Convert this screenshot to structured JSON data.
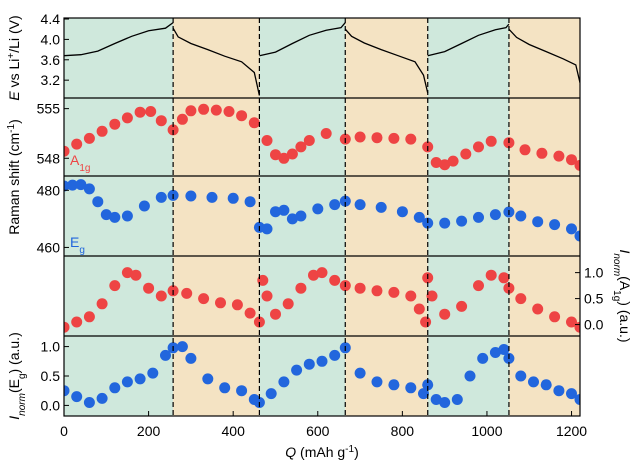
{
  "chart_data": {
    "type": "scatter",
    "x_label": {
      "var": "Q",
      "unit": "(mAh g",
      "sup": "-1",
      "close": ")"
    },
    "xlim": [
      0,
      1220
    ],
    "x_ticks": [
      0,
      200,
      400,
      600,
      800,
      1000,
      1200
    ],
    "cycle_boundaries": [
      258,
      462,
      665,
      860,
      1052
    ],
    "region_colors": {
      "charge": "#cfe8dc",
      "discharge": "#f4e3c3"
    },
    "regions": [
      {
        "from": 0,
        "to": 258,
        "type": "charge"
      },
      {
        "from": 258,
        "to": 462,
        "type": "discharge"
      },
      {
        "from": 462,
        "to": 665,
        "type": "charge"
      },
      {
        "from": 665,
        "to": 860,
        "type": "discharge"
      },
      {
        "from": 860,
        "to": 1052,
        "type": "charge"
      },
      {
        "from": 1052,
        "to": 1220,
        "type": "discharge"
      }
    ],
    "panels": [
      {
        "id": "voltage",
        "y_label": {
          "var": "E",
          "text": " vs Li",
          "sup": "+",
          "rest": "/Li (V)"
        },
        "ylim": [
          2.85,
          4.42
        ],
        "y_ticks": [
          3.2,
          3.6,
          4.0,
          4.4
        ],
        "y_ticks_side": "left",
        "line_color": "#000000",
        "series": [
          {
            "x": [
              0,
              40,
              80,
              120,
              160,
              200,
              240,
              258
            ],
            "y": [
              3.68,
              3.7,
              3.77,
              3.92,
              4.06,
              4.17,
              4.22,
              4.33
            ]
          },
          {
            "x": [
              258,
              270,
              300,
              340,
              380,
              420,
              450,
              462
            ],
            "y": [
              4.22,
              4.05,
              3.92,
              3.8,
              3.67,
              3.56,
              3.35,
              2.9
            ]
          },
          {
            "x": [
              462,
              500,
              540,
              580,
              620,
              655,
              665
            ],
            "y": [
              3.68,
              3.75,
              3.92,
              4.08,
              4.18,
              4.23,
              4.33
            ]
          },
          {
            "x": [
              665,
              680,
              710,
              750,
              790,
              830,
              850,
              860
            ],
            "y": [
              4.2,
              4.06,
              3.93,
              3.8,
              3.68,
              3.56,
              3.3,
              2.95
            ]
          },
          {
            "x": [
              860,
              900,
              940,
              980,
              1020,
              1045,
              1052
            ],
            "y": [
              3.68,
              3.76,
              3.92,
              4.08,
              4.19,
              4.23,
              4.3
            ]
          },
          {
            "x": [
              1052,
              1070,
              1100,
              1140,
              1180,
              1210,
              1220
            ],
            "y": [
              4.2,
              4.04,
              3.9,
              3.76,
              3.62,
              3.5,
              3.15
            ]
          }
        ]
      },
      {
        "id": "a1g",
        "series_label": {
          "base": "A",
          "sub": "1g"
        },
        "ylim": [
          545.5,
          556.5
        ],
        "y_ticks": [
          548,
          555
        ],
        "y_ticks_side": "left",
        "color": "#ee4444",
        "series": [
          {
            "x": [
              0,
              30,
              60,
              90,
              120,
              150,
              180,
              205,
              230,
              258,
              280,
              300,
              330,
              360,
              390,
              420,
              450,
              480,
              500,
              520,
              540,
              560,
              580,
              620,
              665,
              700,
              740,
              780,
              820,
              860,
              880,
              900,
              920,
              950,
              980,
              1010,
              1052,
              1090,
              1130,
              1170,
              1200,
              1220
            ],
            "y": [
              549.0,
              550.0,
              550.8,
              551.8,
              552.8,
              553.7,
              554.5,
              554.6,
              553.3,
              552.0,
              553.5,
              554.7,
              554.9,
              554.8,
              554.6,
              554.0,
              553.0,
              550.5,
              548.5,
              548.0,
              548.6,
              549.6,
              550.5,
              551.5,
              550.7,
              551.0,
              550.9,
              550.8,
              550.7,
              549.6,
              547.4,
              547.1,
              547.6,
              548.6,
              549.6,
              550.4,
              550.2,
              549.2,
              548.7,
              548.3,
              547.8,
              547.0
            ]
          }
        ]
      },
      {
        "id": "eg",
        "series_label": {
          "base": "E",
          "sub": "g"
        },
        "ylim": [
          457,
          485
        ],
        "y_ticks": [
          460,
          480
        ],
        "y_ticks_side": "left",
        "color": "#2266dd",
        "series": [
          {
            "x": [
              0,
              20,
              40,
              60,
              80,
              100,
              120,
              150,
              190,
              230,
              258,
              300,
              350,
              400,
              440,
              462,
              480,
              500,
              520,
              540,
              560,
              600,
              640,
              665,
              700,
              750,
              800,
              840,
              860,
              900,
              940,
              980,
              1020,
              1052,
              1080,
              1120,
              1160,
              1200,
              1220
            ],
            "y": [
              481.5,
              481.8,
              482.0,
              480.5,
              476.0,
              471.5,
              470.5,
              471.0,
              474.5,
              477.5,
              478.2,
              478.0,
              477.5,
              477.2,
              476.0,
              467.0,
              466.5,
              472.5,
              473.0,
              470.0,
              471.0,
              473.5,
              475.0,
              476.2,
              475.0,
              474.0,
              472.5,
              470.5,
              468.5,
              468.5,
              469.2,
              470.5,
              471.5,
              472.4,
              471.0,
              469.0,
              468.0,
              466.5,
              464.0
            ]
          }
        ]
      },
      {
        "id": "inorm_a1g",
        "y_label": {
          "base": "I",
          "sub": "norm",
          "mid": "(A",
          "sub2": "1g",
          "end": ") (a.u.)"
        },
        "ylim": [
          -0.22,
          1.32
        ],
        "y_ticks": [
          0.0,
          0.5,
          1.0
        ],
        "y_ticks_side": "right",
        "color": "#ee4444",
        "series": [
          {
            "x": [
              0,
              30,
              60,
              90,
              120,
              150,
              170,
              200,
              230,
              258,
              290,
              330,
              370,
              410,
              440,
              462,
              470,
              480,
              500,
              530,
              560,
              590,
              610,
              640,
              665,
              700,
              740,
              780,
              820,
              840,
              855,
              860,
              870,
              900,
              940,
              980,
              1010,
              1040,
              1052,
              1080,
              1120,
              1160,
              1200,
              1220
            ],
            "y": [
              -0.05,
              0.05,
              0.15,
              0.4,
              0.75,
              1.0,
              0.95,
              0.7,
              0.55,
              0.65,
              0.6,
              0.5,
              0.42,
              0.38,
              0.22,
              0.05,
              0.85,
              0.55,
              0.2,
              0.4,
              0.7,
              0.95,
              1.0,
              0.85,
              0.75,
              0.7,
              0.65,
              0.62,
              0.55,
              0.3,
              0.05,
              0.9,
              0.55,
              0.2,
              0.35,
              0.75,
              0.95,
              0.9,
              0.7,
              0.5,
              0.3,
              0.15,
              0.05,
              -0.05
            ]
          }
        ]
      },
      {
        "id": "inorm_eg",
        "y_label": {
          "base": "I",
          "sub": "norm",
          "mid": "(E",
          "sub2": "g",
          "end": ") (a.u.)"
        },
        "ylim": [
          -0.18,
          1.18
        ],
        "y_ticks": [
          0.0,
          0.5,
          1.0
        ],
        "y_ticks_side": "left",
        "color": "#2266dd",
        "series": [
          {
            "x": [
              0,
              30,
              60,
              90,
              120,
              150,
              180,
              210,
              240,
              258,
              280,
              300,
              340,
              380,
              420,
              450,
              462,
              490,
              520,
              550,
              580,
              610,
              640,
              665,
              700,
              740,
              780,
              820,
              850,
              860,
              880,
              900,
              930,
              960,
              990,
              1020,
              1040,
              1052,
              1080,
              1110,
              1140,
              1170,
              1200,
              1220
            ],
            "y": [
              0.25,
              0.15,
              0.05,
              0.12,
              0.3,
              0.4,
              0.45,
              0.55,
              0.85,
              0.98,
              1.0,
              0.8,
              0.45,
              0.3,
              0.25,
              0.1,
              0.05,
              0.2,
              0.4,
              0.6,
              0.7,
              0.75,
              0.85,
              0.98,
              0.55,
              0.4,
              0.35,
              0.3,
              0.2,
              0.35,
              0.1,
              0.05,
              0.1,
              0.5,
              0.8,
              0.9,
              0.95,
              0.8,
              0.5,
              0.4,
              0.35,
              0.25,
              0.2,
              0.1
            ]
          }
        ]
      }
    ]
  }
}
